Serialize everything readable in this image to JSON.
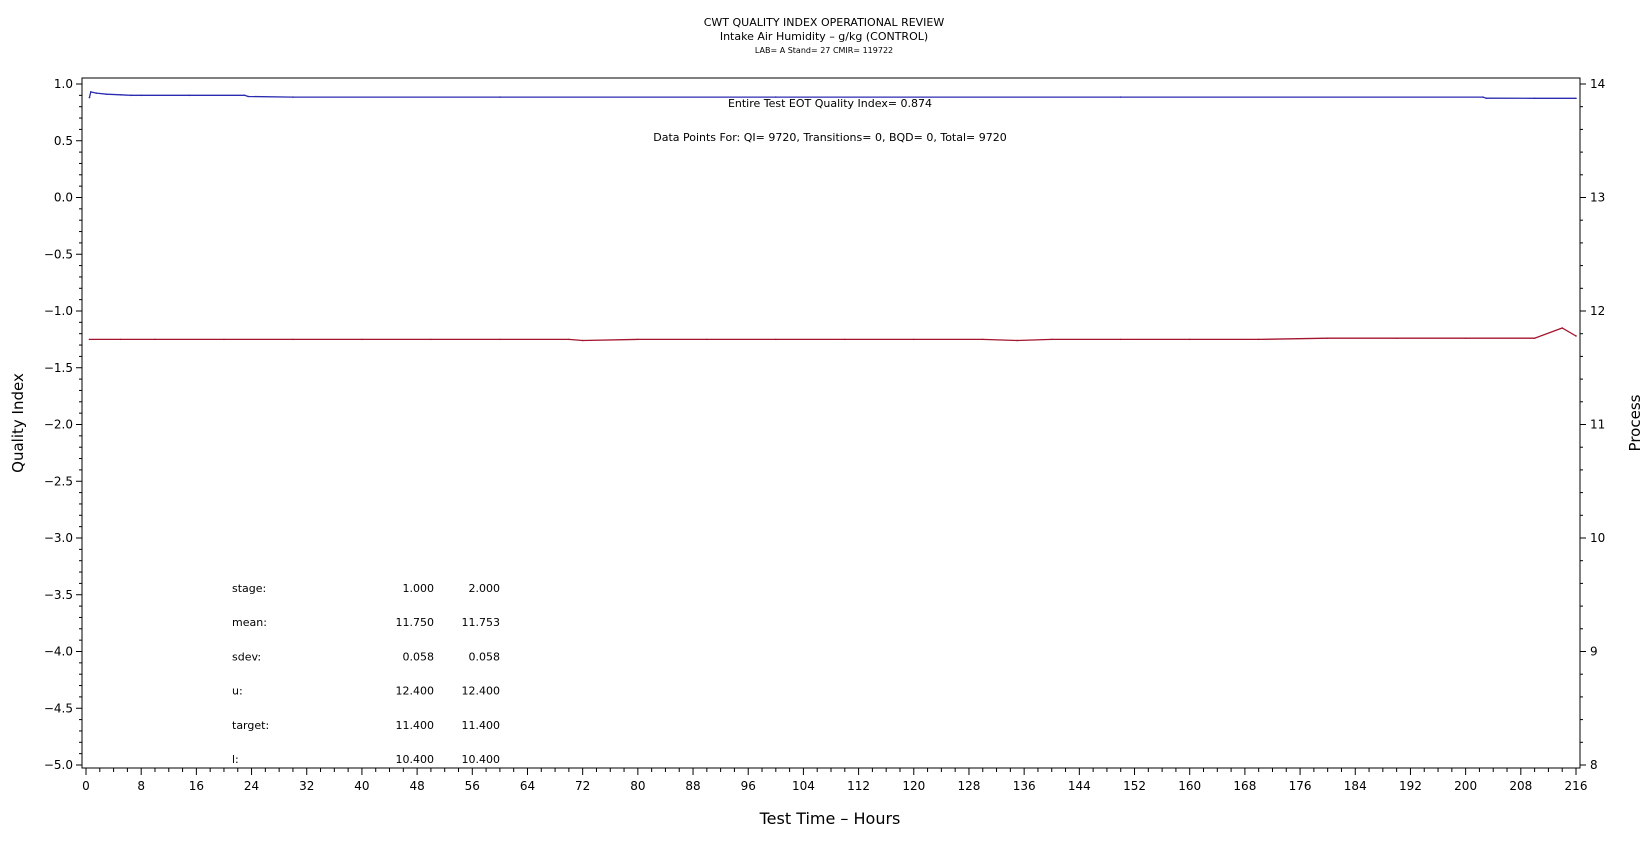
{
  "chart_data": {
    "type": "line",
    "title": "CWT QUALITY INDEX OPERATIONAL REVIEW",
    "subtitle": "Intake Air Humidity – g/kg (CONTROL)",
    "subtitle2": "LAB= A Stand= 27 CMIR= 119722",
    "xlabel": "Test Time – Hours",
    "ylabel_left": "Quality Index",
    "ylabel_right": "Process",
    "xlim": [
      0,
      216
    ],
    "x_ticks": [
      0,
      8,
      16,
      24,
      32,
      40,
      48,
      56,
      64,
      72,
      80,
      88,
      96,
      104,
      112,
      120,
      128,
      136,
      144,
      152,
      160,
      168,
      176,
      184,
      192,
      200,
      208,
      216
    ],
    "ylim_left": [
      -5.0,
      1.0
    ],
    "y_ticks_left": [
      "1.0",
      "0.5",
      "0.0",
      "−0.5",
      "−1.0",
      "−1.5",
      "−2.0",
      "−2.5",
      "−3.0",
      "−3.5",
      "−4.0",
      "−4.5",
      "−5.0"
    ],
    "ylim_right": [
      8,
      14
    ],
    "y_ticks_right": [
      "14",
      "13",
      "12",
      "11",
      "10",
      "9",
      "8"
    ],
    "grid": false,
    "annotations": {
      "eot": "Entire Test EOT Quality Index=   0.874",
      "points": "Data Points For: QI=  9720, Transitions=     0, BQD=     0, Total=  9720"
    },
    "series": [
      {
        "axis": "left",
        "color": "#2b2bb0",
        "x": [
          0.5,
          0.7,
          1.5,
          3,
          5,
          6.5,
          8,
          15,
          23,
          23.5,
          30,
          60,
          100,
          150,
          202.5,
          203,
          210,
          216
        ],
        "y": [
          0.88,
          0.93,
          0.92,
          0.91,
          0.905,
          0.9,
          0.9,
          0.9,
          0.9,
          0.89,
          0.885,
          0.885,
          0.885,
          0.885,
          0.885,
          0.875,
          0.874,
          0.874
        ]
      },
      {
        "axis": "right",
        "color": "#a3142e",
        "description_mean": 11.75,
        "x": [
          0.5,
          5,
          10,
          20,
          30,
          40,
          50,
          60,
          70,
          72,
          80,
          90,
          100,
          110,
          120,
          130,
          135,
          140,
          150,
          160,
          170,
          180,
          190,
          200,
          210,
          214,
          216
        ],
        "y": [
          11.75,
          11.75,
          11.75,
          11.75,
          11.75,
          11.75,
          11.75,
          11.75,
          11.75,
          11.74,
          11.75,
          11.75,
          11.75,
          11.75,
          11.75,
          11.75,
          11.74,
          11.75,
          11.75,
          11.75,
          11.75,
          11.76,
          11.76,
          11.76,
          11.76,
          11.85,
          11.78
        ]
      }
    ],
    "stats_table": {
      "headers": [
        "stage:",
        "1.000",
        "2.000"
      ],
      "rows": [
        [
          "mean:",
          "11.750",
          "11.753"
        ],
        [
          "sdev:",
          "0.058",
          "0.058"
        ],
        [
          "u:",
          "12.400",
          "12.400"
        ],
        [
          "target:",
          "11.400",
          "11.400"
        ],
        [
          "l:",
          "10.400",
          "10.400"
        ]
      ]
    }
  }
}
